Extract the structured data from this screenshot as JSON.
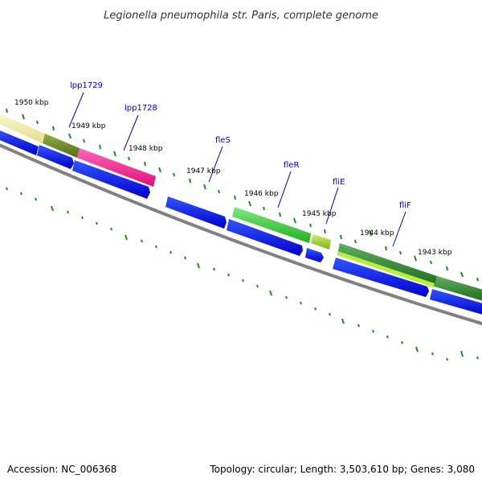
{
  "title": "Legionella pneumophila str. Paris, complete genome",
  "footer": {
    "accession": "Accession: NC_006368",
    "summary": "Topology: circular; Length: 3,503,610 bp; Genes: 3,080"
  },
  "scale_labels": [
    "1950 kbp",
    "1949 kbp",
    "1948 kbp",
    "1947 kbp",
    "1946 kbp",
    "1945 kbp",
    "1944 kbp",
    "1943 kbp"
  ],
  "genes": [
    {
      "name": "lpp1729",
      "color": "#6b8e23"
    },
    {
      "name": "lpp1728",
      "color": "#ff1493"
    },
    {
      "name": "fleS",
      "color": "#0000ff"
    },
    {
      "name": "fleR",
      "color": "#32cd32"
    },
    {
      "name": "fliE",
      "color": "#9acd32"
    },
    {
      "name": "fliF",
      "color": "#2e8b57"
    }
  ],
  "colors": {
    "cds_strand": "#0000ff",
    "backbone": "#808080",
    "tick": "#228b22",
    "label_leader": "#0000aa"
  }
}
